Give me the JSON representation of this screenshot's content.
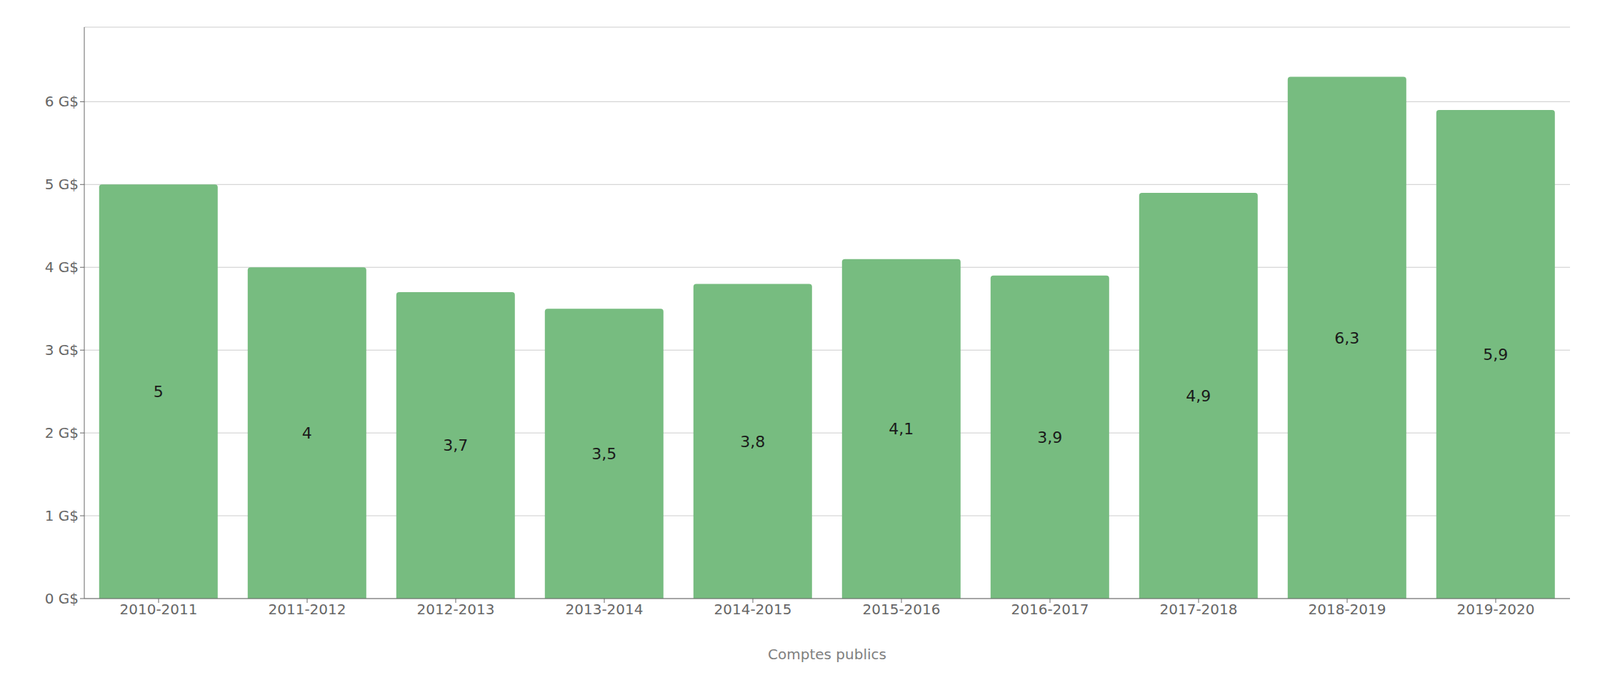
{
  "chart_data": {
    "type": "bar",
    "xlabel": "Comptes publics",
    "categories": [
      "2010-2011",
      "2011-2012",
      "2012-2013",
      "2013-2014",
      "2014-2015",
      "2015-2016",
      "2016-2017",
      "2017-2018",
      "2018-2019",
      "2019-2020"
    ],
    "values": [
      5.0,
      4.0,
      3.7,
      3.5,
      3.8,
      4.1,
      3.9,
      4.9,
      6.3,
      5.9
    ],
    "value_labels": [
      "5",
      "4",
      "3,7",
      "3,5",
      "3,8",
      "4,1",
      "3,9",
      "4,9",
      "6,3",
      "5,9"
    ],
    "data_labels": true,
    "color": "#77bc80",
    "ylim": [
      0,
      6.9
    ],
    "yticks": [
      {
        "value": 0,
        "label": "0 G$"
      },
      {
        "value": 1,
        "label": "1 G$"
      },
      {
        "value": 2,
        "label": "2 G$"
      },
      {
        "value": 3,
        "label": "3 G$"
      },
      {
        "value": 4,
        "label": "4 G$"
      },
      {
        "value": 5,
        "label": "5 G$"
      },
      {
        "value": 6,
        "label": "6 G$"
      }
    ],
    "grid": true
  }
}
